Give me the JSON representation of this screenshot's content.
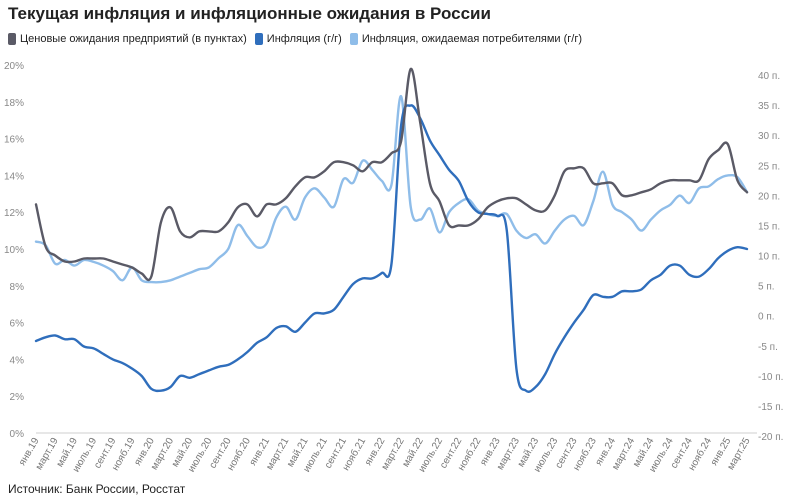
{
  "title": "Текущая инфляция и инфляционные ожидания в России",
  "source": "Источник: Банк России, Росстат",
  "chart_data": {
    "type": "line",
    "title": "Текущая инфляция и инфляционные ожидания в России",
    "x": [
      "янв.19",
      "февр.19",
      "март.19",
      "апр.19",
      "май.19",
      "июнь.19",
      "июль.19",
      "авг.19",
      "сент.19",
      "окт.19",
      "нояб.19",
      "дек.19",
      "янв.20",
      "февр.20",
      "март.20",
      "апр.20",
      "май.20",
      "июнь.20",
      "июль.20",
      "авг.20",
      "сент.20",
      "окт.20",
      "нояб.20",
      "дек.20",
      "янв.21",
      "февр.21",
      "март.21",
      "апр.21",
      "май.21",
      "июнь.21",
      "июль.21",
      "авг.21",
      "сент.21",
      "окт.21",
      "нояб.21",
      "дек.21",
      "янв.22",
      "февр.22",
      "март.22",
      "апр.22",
      "май.22",
      "июнь.22",
      "июль.22",
      "авг.22",
      "сент.22",
      "окт.22",
      "нояб.22",
      "дек.22",
      "янв.23",
      "февр.23",
      "март.23",
      "апр.23",
      "май.23",
      "июнь.23",
      "июль.23",
      "авг.23",
      "сент.23",
      "окт.23",
      "нояб.23",
      "дек.23",
      "янв.24",
      "февр.24",
      "март.24",
      "апр.24",
      "май.24",
      "июнь.24",
      "июль.24",
      "авг.24",
      "сент.24",
      "окт.24",
      "нояб.24",
      "дек.24",
      "янв.25",
      "февр.25",
      "март.25"
    ],
    "x_tick_labels": [
      "янв.19",
      "март.19",
      "май.19",
      "июль.19",
      "сент.19",
      "нояб.19",
      "янв.20",
      "март.20",
      "май.20",
      "июль.20",
      "сент.20",
      "нояб.20",
      "янв.21",
      "март.21",
      "май.21",
      "июль.21",
      "сент.21",
      "нояб.21",
      "янв.22",
      "март.22",
      "май.22",
      "июль.22",
      "сент.22",
      "нояб.22",
      "янв.23",
      "март.23",
      "май.23",
      "июль.23",
      "сент.23",
      "нояб.23",
      "янв.24",
      "март.24",
      "май.24",
      "июль.24",
      "сент.24",
      "нояб.24",
      "янв.25",
      "март.25"
    ],
    "y_left": {
      "ticks": [
        "0%",
        "2%",
        "4%",
        "6%",
        "8%",
        "10%",
        "12%",
        "14%",
        "16%",
        "18%",
        "20%"
      ],
      "ylim": [
        0,
        20
      ],
      "unit": "%"
    },
    "y_right": {
      "ticks": [
        "-20 п.",
        "-15 п.",
        "-10 п.",
        "-5 п.",
        "0 п.",
        "5 п.",
        "10 п.",
        "15 п.",
        "20 п.",
        "25 п.",
        "30 п.",
        "35 п.",
        "40 п."
      ],
      "ylim": [
        -20,
        42
      ]
    },
    "legend_position": "top-left",
    "grid": false,
    "series": [
      {
        "name": "Ценовые ожидания предприятий (в пунктах)",
        "axis": "right",
        "color": "#5a5a66",
        "values": [
          18.5,
          11.5,
          10,
          9,
          9,
          9.5,
          9.5,
          9.5,
          9,
          8.5,
          8,
          7,
          6.5,
          15.5,
          18,
          14,
          13,
          14,
          14,
          14,
          15.5,
          18,
          18.5,
          16.5,
          18.5,
          18.5,
          19.5,
          21.5,
          23,
          23,
          24,
          25.5,
          25.5,
          25,
          24,
          25.5,
          25.5,
          27,
          29,
          41,
          32,
          22,
          19,
          15,
          15,
          15,
          16,
          18,
          19,
          19.5,
          19.5,
          18.5,
          17.5,
          17.5,
          20,
          24,
          24.5,
          24.5,
          22,
          22,
          22,
          20,
          20,
          20.5,
          21,
          22,
          22.5,
          22.5,
          22.5,
          22.5,
          26,
          27.5,
          28.5,
          22.5,
          20.5
        ]
      },
      {
        "name": "Инфляция (г/г)",
        "axis": "left",
        "color": "#2f6ebc",
        "values": [
          5,
          5.2,
          5.3,
          5.1,
          5.1,
          4.7,
          4.6,
          4.3,
          4,
          3.8,
          3.5,
          3.1,
          2.4,
          2.3,
          2.5,
          3.1,
          3.0,
          3.2,
          3.4,
          3.6,
          3.7,
          4.0,
          4.4,
          4.9,
          5.2,
          5.7,
          5.8,
          5.5,
          6.0,
          6.5,
          6.5,
          6.7,
          7.4,
          8.1,
          8.4,
          8.4,
          8.7,
          9.2,
          16.7,
          17.8,
          17.1,
          15.9,
          15.1,
          14.3,
          13.7,
          12.6,
          12,
          11.9,
          11.8,
          11,
          3.5,
          2.3,
          2.5,
          3.2,
          4.3,
          5.2,
          6.0,
          6.7,
          7.5,
          7.4,
          7.4,
          7.7,
          7.7,
          7.8,
          8.3,
          8.6,
          9.1,
          9.1,
          8.6,
          8.5,
          8.9,
          9.5,
          9.9,
          10.1,
          10.0
        ]
      },
      {
        "name": "Инфляция, ожидаемая потребителями (г/г)",
        "axis": "left",
        "color": "#8fbde9",
        "values": [
          10.4,
          10.2,
          9.2,
          9.4,
          9.1,
          9.4,
          9.3,
          9.1,
          8.8,
          8.3,
          9,
          8.3,
          8.2,
          8.2,
          8.3,
          8.5,
          8.7,
          8.9,
          9.0,
          9.5,
          10,
          11.3,
          10.7,
          10.1,
          10.3,
          11.7,
          12.3,
          11.6,
          12.8,
          13.3,
          12.8,
          12.3,
          13.8,
          13.6,
          14.8,
          14.3,
          13.7,
          13.5,
          18.3,
          12.3,
          11.6,
          12.2,
          10.9,
          12,
          12.5,
          12.7,
          12.1,
          11.9,
          11.8,
          11.9,
          11,
          10.6,
          10.8,
          10.3,
          11,
          11.6,
          11.8,
          11.3,
          12.6,
          14.2,
          12.4,
          12,
          11.6,
          11,
          11.6,
          12.1,
          12.4,
          12.9,
          12.5,
          13.3,
          13.4,
          13.8,
          14,
          13.9,
          13.1
        ]
      }
    ]
  }
}
